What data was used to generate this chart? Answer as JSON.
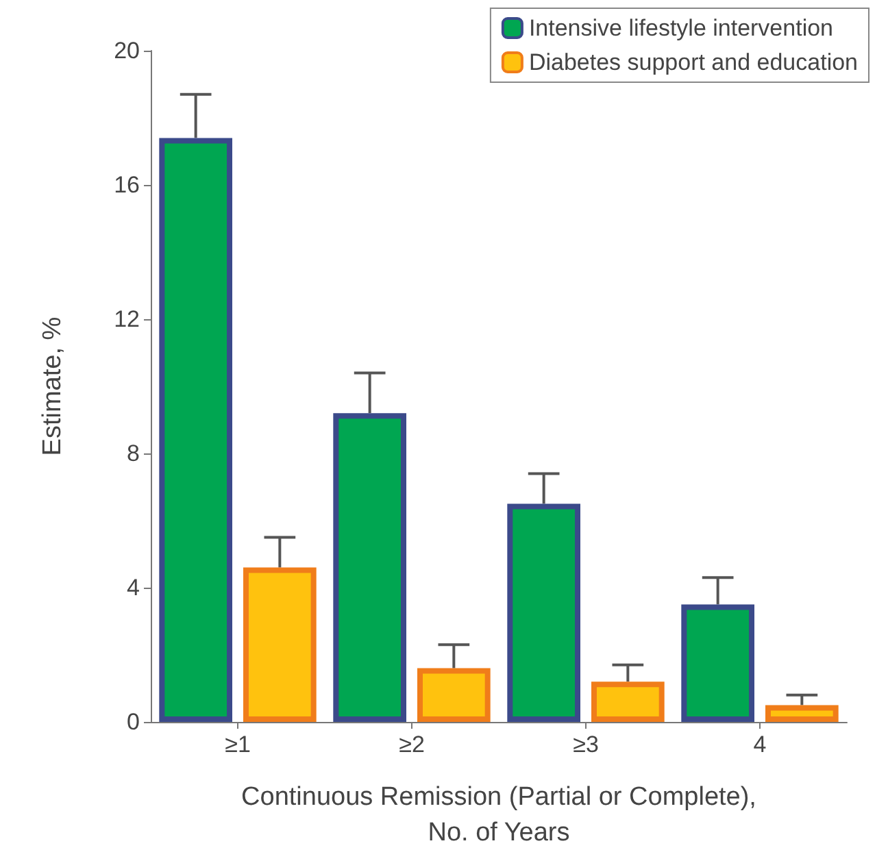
{
  "chart_data": {
    "type": "bar",
    "xlabel": "Continuous Remission (Partial or Complete),\nNo. of Years",
    "ylabel": "Estimate, %",
    "categories": [
      "≥1",
      "≥2",
      "≥3",
      "4"
    ],
    "series": [
      {
        "name": "Intensive lifestyle intervention",
        "color": "#00a651",
        "values": [
          17.4,
          9.2,
          6.5,
          3.5
        ],
        "errors": [
          [
            17.4,
            18.7
          ],
          [
            9.2,
            10.4
          ],
          [
            6.5,
            7.4
          ],
          [
            3.5,
            4.3
          ]
        ]
      },
      {
        "name": "Diabetes support and education",
        "color": "#ffc20e",
        "values": [
          4.6,
          1.6,
          1.2,
          0.5
        ],
        "errors": [
          [
            4.6,
            5.5
          ],
          [
            1.6,
            2.3
          ],
          [
            1.2,
            1.7
          ],
          [
            0.5,
            0.8
          ]
        ]
      }
    ],
    "ylim": [
      0,
      20
    ],
    "yticks": [
      0,
      4,
      8,
      12,
      16,
      20
    ],
    "grid": false,
    "legend": "top right"
  }
}
